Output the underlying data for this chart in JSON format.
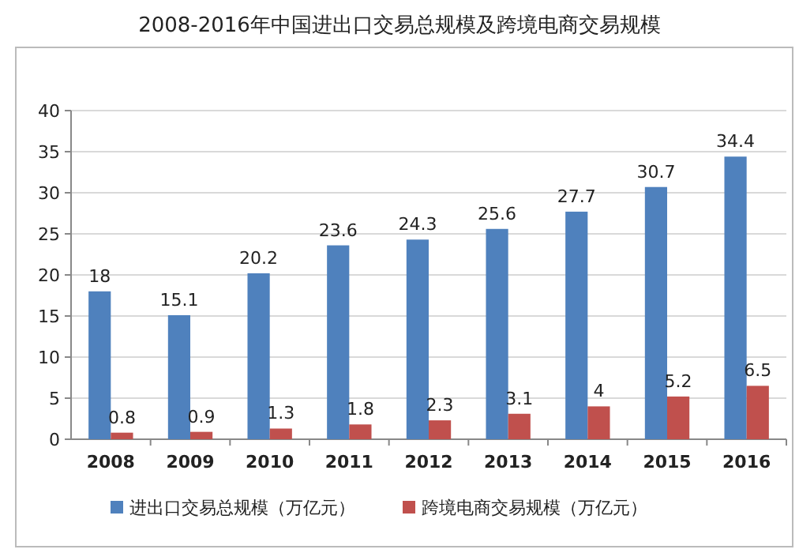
{
  "chart_data": {
    "type": "bar",
    "title": "2008-2016年中国进出口交易总规模及跨境电商交易规模",
    "categories": [
      "2008",
      "2009",
      "2010",
      "2011",
      "2012",
      "2013",
      "2014",
      "2015",
      "2016"
    ],
    "series": [
      {
        "name": "进出口交易总规模（万亿元）",
        "color": "#4f81bd",
        "values": [
          18,
          15.1,
          20.2,
          23.6,
          24.3,
          25.6,
          27.7,
          30.7,
          34.4
        ]
      },
      {
        "name": "跨境电商交易规模（万亿元）",
        "color": "#c0504d",
        "values": [
          0.8,
          0.9,
          1.3,
          1.8,
          2.3,
          3.1,
          4,
          5.2,
          6.5
        ]
      }
    ],
    "ylim": [
      0,
      40
    ],
    "yticks": [
      0,
      5,
      10,
      15,
      20,
      25,
      30,
      35,
      40
    ],
    "grid": "y",
    "legend": "bottom",
    "data_labels": true
  }
}
